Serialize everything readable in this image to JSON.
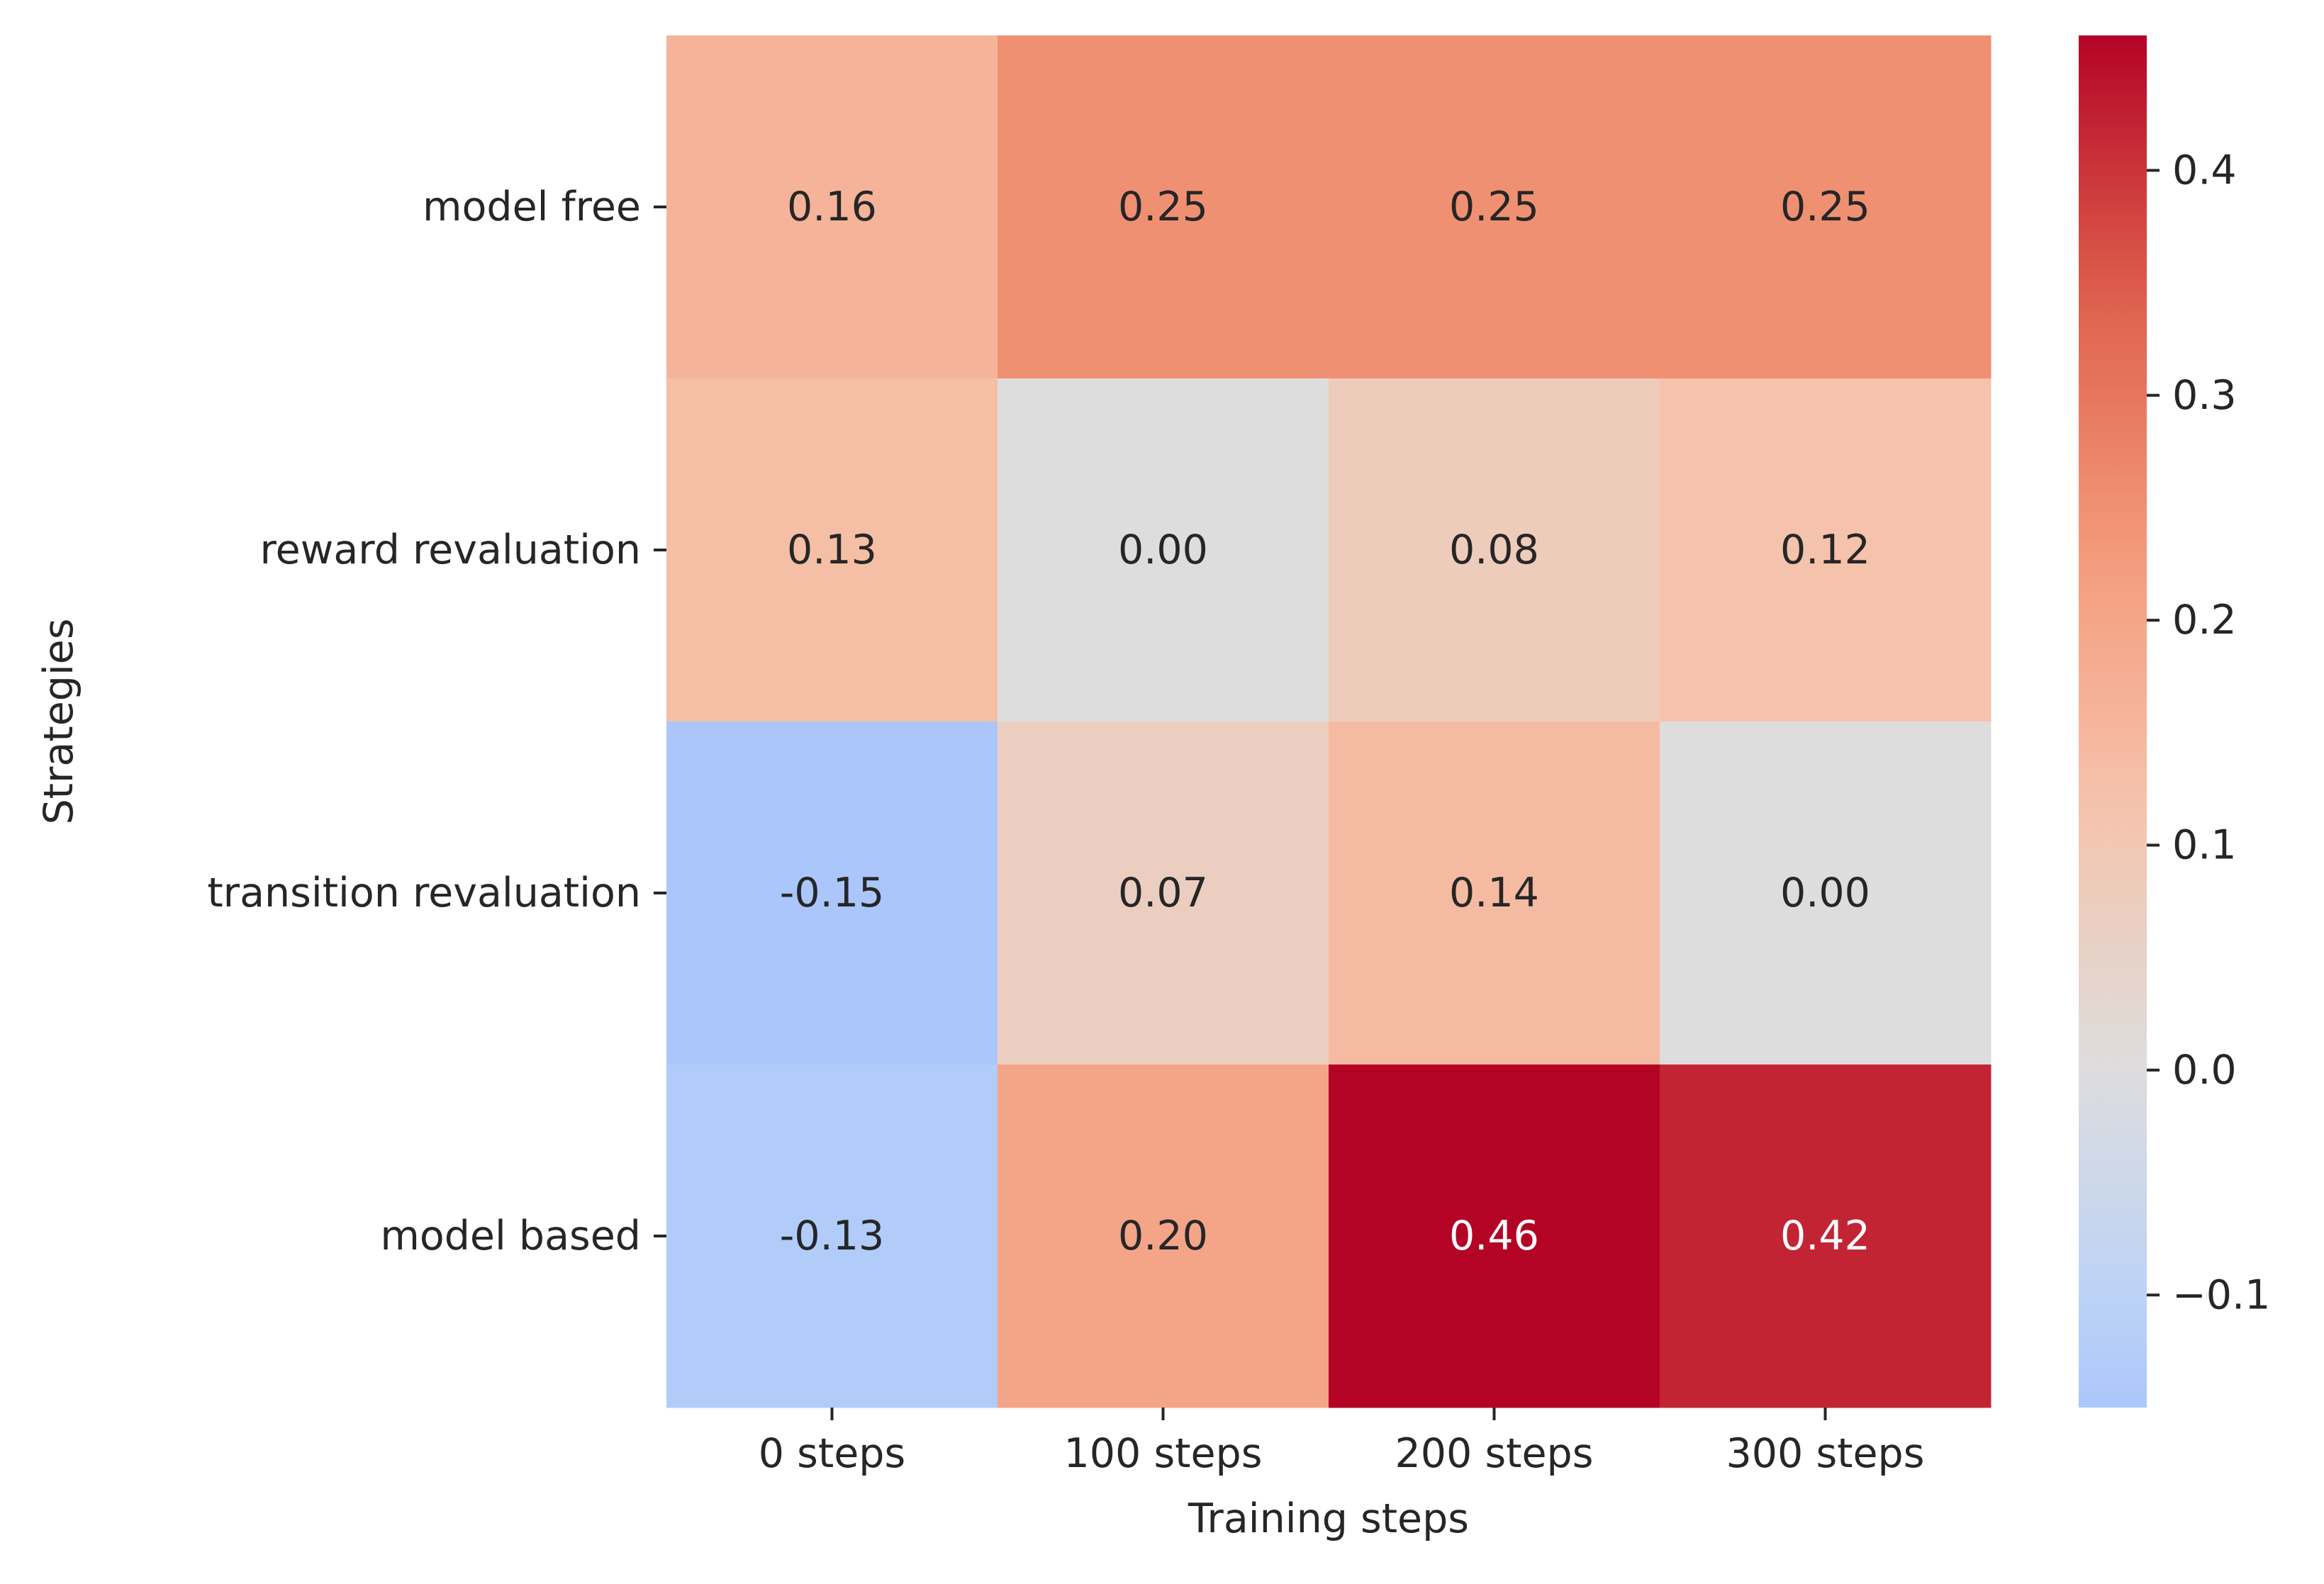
{
  "chart_data": {
    "type": "heatmap",
    "title": "",
    "xlabel": "Training steps",
    "ylabel": "Strategies",
    "x_categories": [
      "0 steps",
      "100 steps",
      "200 steps",
      "300 steps"
    ],
    "y_categories": [
      "model free",
      "reward revaluation",
      "transition revaluation",
      "model based"
    ],
    "values": [
      [
        0.16,
        0.25,
        0.25,
        0.25
      ],
      [
        0.13,
        0.0,
        0.08,
        0.12
      ],
      [
        -0.15,
        0.07,
        0.14,
        0.0
      ],
      [
        -0.13,
        0.2,
        0.46,
        0.42
      ]
    ],
    "annotations": [
      [
        "0.16",
        "0.25",
        "0.25",
        "0.25"
      ],
      [
        "0.13",
        "0.00",
        "0.08",
        "0.12"
      ],
      [
        "-0.15",
        "0.07",
        "0.14",
        "0.00"
      ],
      [
        "-0.13",
        "0.20",
        "0.46",
        "0.42"
      ]
    ],
    "colormap": "coolwarm",
    "center": 0,
    "vmin": -0.15,
    "vmax": 0.46,
    "colorbar": {
      "ticks": [
        -0.1,
        0.0,
        0.1,
        0.2,
        0.3,
        0.4
      ],
      "tick_labels": [
        "−0.1",
        "0.0",
        "0.1",
        "0.2",
        "0.3",
        "0.4"
      ]
    },
    "colors": {
      "dark_text": "#262626",
      "light_text": "#ffffff"
    }
  }
}
